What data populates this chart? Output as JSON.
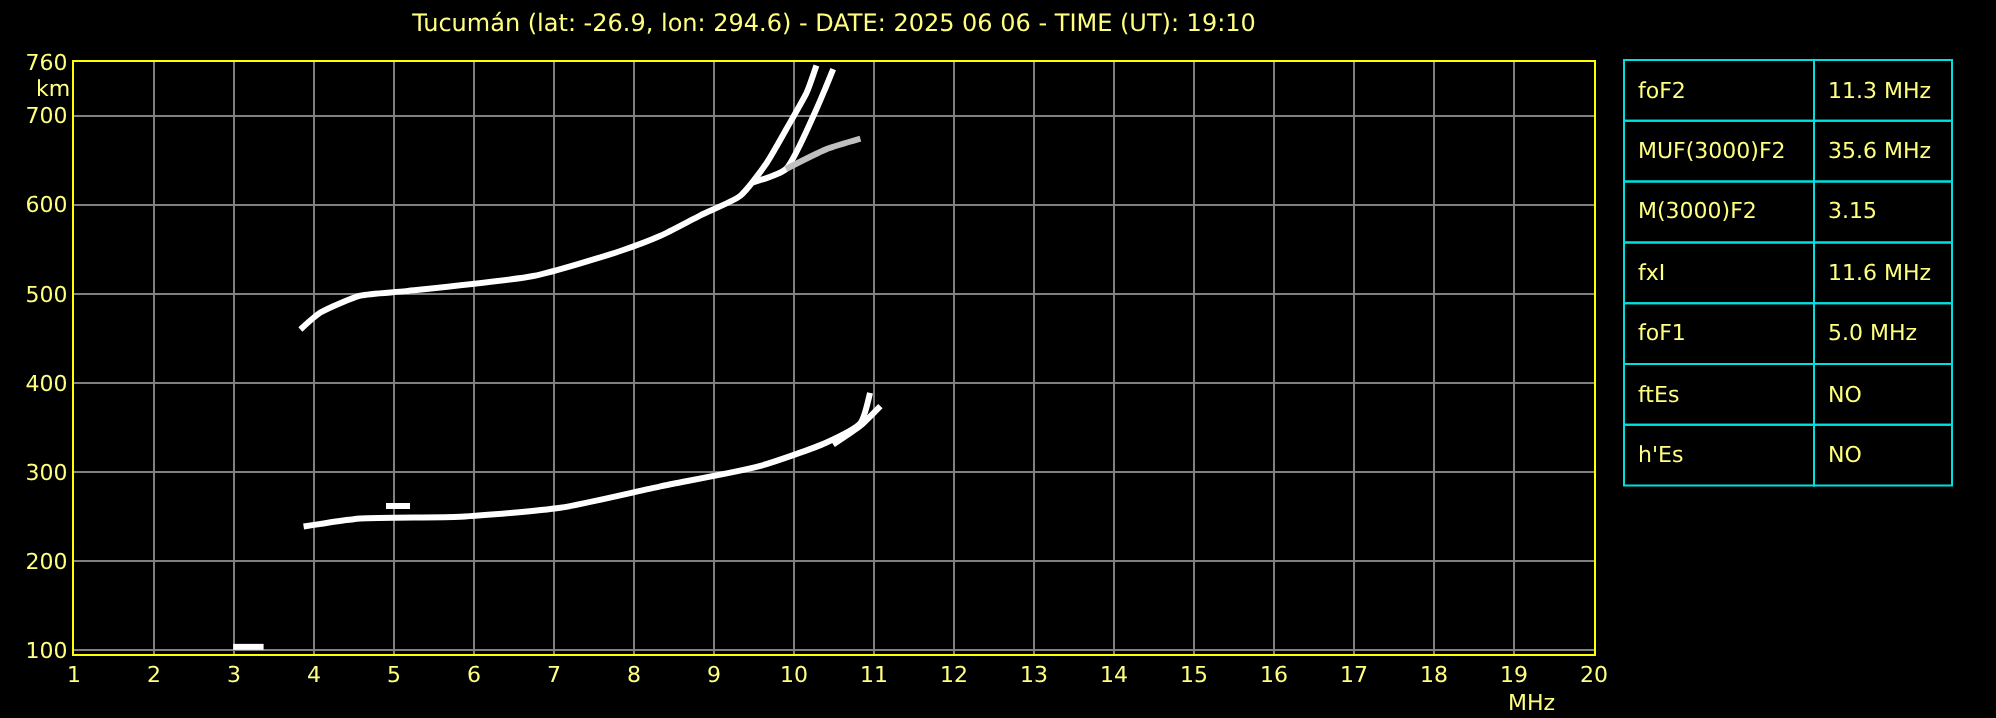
{
  "chart_data": [
    {
      "type": "line",
      "title": "Tucumán (lat: -26.9, lon: 294.6) - DATE: 2025 06 06 - TIME (UT): 19:10",
      "xlabel": "MHz",
      "ylabel": "km",
      "xlim": [
        1,
        20
      ],
      "xticks": [
        1,
        2,
        3,
        4,
        5,
        6,
        7,
        8,
        9,
        10,
        11,
        12,
        13,
        14,
        15,
        16,
        17,
        18,
        19,
        20
      ],
      "ylim": [
        96,
        760
      ],
      "yticks": [
        100,
        200,
        300,
        400,
        500,
        600,
        700,
        760
      ],
      "grid": true,
      "marker": "none",
      "line_style": "solid",
      "series": [
        {
          "color": "#ffffff",
          "x": [
            3.87,
            4.58,
            5.83,
            7.08,
            8.33,
            9.58,
            10.4,
            10.83,
            10.95
          ],
          "values": [
            239,
            248,
            250,
            260,
            284,
            307,
            333,
            355,
            389
          ]
        },
        {
          "color": "#ffffff",
          "x": [
            10.49,
            10.83,
            11.08
          ],
          "values": [
            331,
            352,
            374
          ]
        },
        {
          "color": "#ffffff",
          "x": [
            4.9,
            5.2
          ],
          "values": [
            262,
            262
          ]
        },
        {
          "color": "#ffffff",
          "x": [
            3.83,
            4.08,
            4.58,
            5.15,
            6.74,
            7.83,
            8.33,
            8.83,
            9.33,
            9.66,
            9.95,
            10.16,
            10.28
          ],
          "values": [
            460,
            479,
            498,
            503,
            520,
            548,
            565,
            588,
            610,
            647,
            692,
            726,
            756
          ]
        },
        {
          "color": "#ffffff",
          "x": [
            9.49,
            9.9,
            10.28,
            10.39,
            10.49
          ],
          "values": [
            625,
            640,
            707,
            730,
            752
          ]
        },
        {
          "color": "#c0c0c0",
          "x": [
            9.9,
            10.4,
            10.83
          ],
          "values": [
            640,
            662,
            674
          ]
        },
        {
          "color": "#ffffff",
          "x": [
            2.99,
            3.37
          ],
          "values": [
            104,
            104
          ]
        }
      ]
    },
    {
      "type": "other",
      "annotations": [
        "foF2",
        "11.3 MHz",
        "MUF(3000)F2",
        "35.6 MHz",
        "M(3000)F2",
        "3.15",
        "fxI",
        "11.6 MHz",
        "foF1",
        "5.0 MHz",
        "ftEs",
        "NO",
        "h'Es",
        "NO"
      ]
    }
  ]
}
